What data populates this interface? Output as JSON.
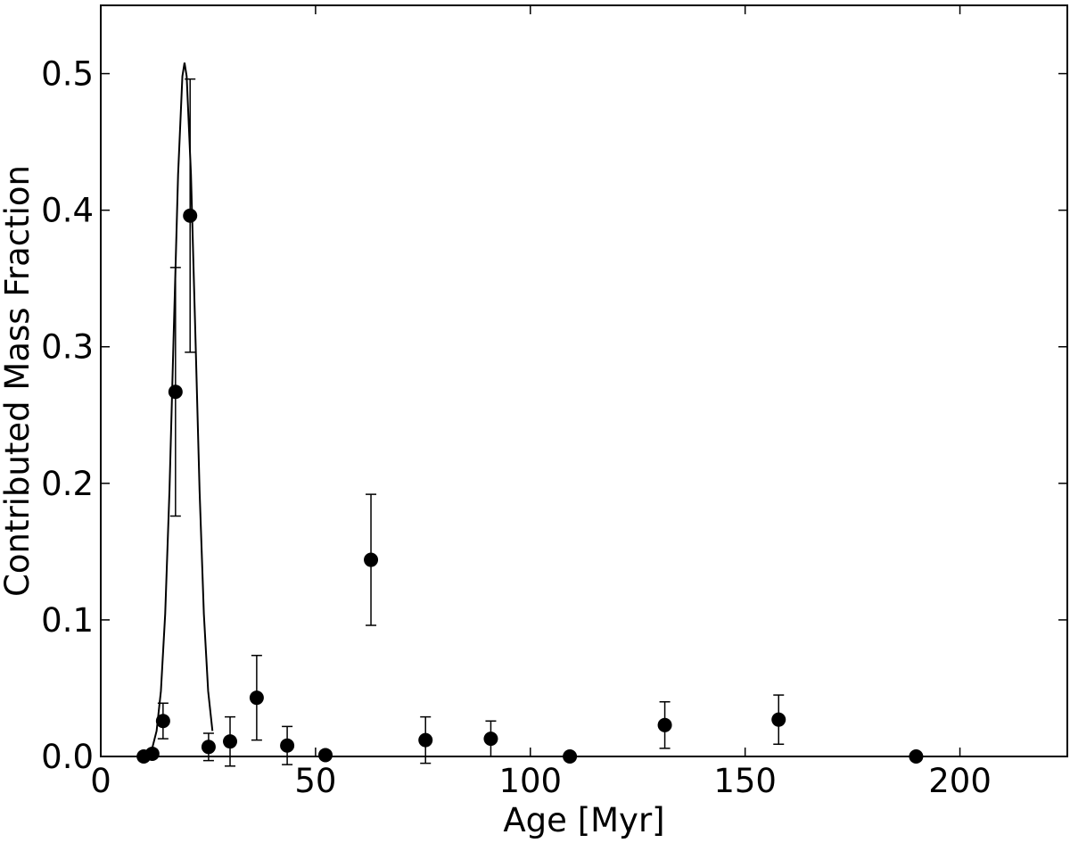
{
  "chart_data": {
    "type": "scatter",
    "xlabel": "Age [Myr]",
    "ylabel": "Contributed Mass Fraction",
    "xlim": [
      0,
      225
    ],
    "ylim": [
      0,
      0.55
    ],
    "xticks": [
      0,
      50,
      100,
      150,
      200
    ],
    "yticks": [
      {
        "value": 0,
        "label": "0.0"
      },
      0.1,
      0.2,
      0.3,
      0.4,
      0.5
    ],
    "color": "#000000",
    "points": {
      "x": [
        10,
        12,
        14.5,
        17.4,
        20.8,
        25.1,
        30.1,
        36.3,
        43.4,
        52.3,
        62.9,
        75.6,
        90.8,
        109.2,
        131.3,
        157.8,
        189.8
      ],
      "y": [
        0,
        0.002,
        0.026,
        0.267,
        0.396,
        0.007,
        0.011,
        0.043,
        0.008,
        0.001,
        0.144,
        0.012,
        0.013,
        0,
        0.023,
        0.027,
        0
      ],
      "errors": [
        0,
        0,
        0.013,
        0.091,
        0.1,
        0.01,
        0.018,
        0.031,
        0.014,
        0,
        0.048,
        0.017,
        0.013,
        0,
        0.017,
        0.018,
        0
      ]
    },
    "curve": {
      "x": [
        10,
        11,
        12,
        13,
        14,
        15,
        16,
        17,
        18,
        19,
        19.5,
        20,
        21,
        22,
        23,
        24,
        25,
        26
      ],
      "y": [
        0.0004,
        0.0018,
        0.0063,
        0.0187,
        0.0478,
        0.1044,
        0.195,
        0.312,
        0.426,
        0.498,
        0.508,
        0.498,
        0.426,
        0.312,
        0.195,
        0.1044,
        0.0478,
        0.0187
      ]
    }
  }
}
